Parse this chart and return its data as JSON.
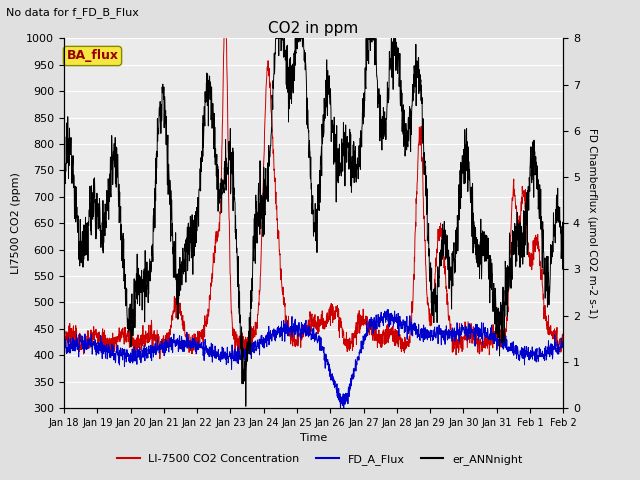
{
  "title": "CO2 in ppm",
  "top_left_text": "No data for f_FD_B_Flux",
  "box_label": "BA_flux",
  "ylabel_left": "LI7500 CO2 (ppm)",
  "ylabel_right": "FD Chamberflux (μmol CO2 m-2 s-1)",
  "xlabel": "Time",
  "ylim_left": [
    300,
    1000
  ],
  "ylim_right": [
    0.0,
    8.0
  ],
  "yticks_left": [
    300,
    350,
    400,
    450,
    500,
    550,
    600,
    650,
    700,
    750,
    800,
    850,
    900,
    950,
    1000
  ],
  "yticks_right": [
    0.0,
    1.0,
    2.0,
    3.0,
    4.0,
    5.0,
    6.0,
    7.0,
    8.0
  ],
  "xtick_labels": [
    "Jan 18",
    "Jan 19",
    "Jan 20",
    "Jan 21",
    "Jan 22",
    "Jan 23",
    "Jan 24",
    "Jan 25",
    "Jan 26",
    "Jan 27",
    "Jan 28",
    "Jan 29",
    "Jan 30",
    "Jan 31",
    "Feb 1",
    "Feb 2"
  ],
  "legend_entries": [
    "LI-7500 CO2 Concentration",
    "FD_A_Flux",
    "er_ANNnight"
  ],
  "legend_colors": [
    "#cc0000",
    "#0000cc",
    "#000000"
  ],
  "bg_color": "#e0e0e0",
  "plot_bg_color": "#ebebeb",
  "grid_color": "#ffffff",
  "line_color_red": "#cc0000",
  "line_color_blue": "#0000cc",
  "line_color_black": "#000000",
  "n_points": 2000
}
